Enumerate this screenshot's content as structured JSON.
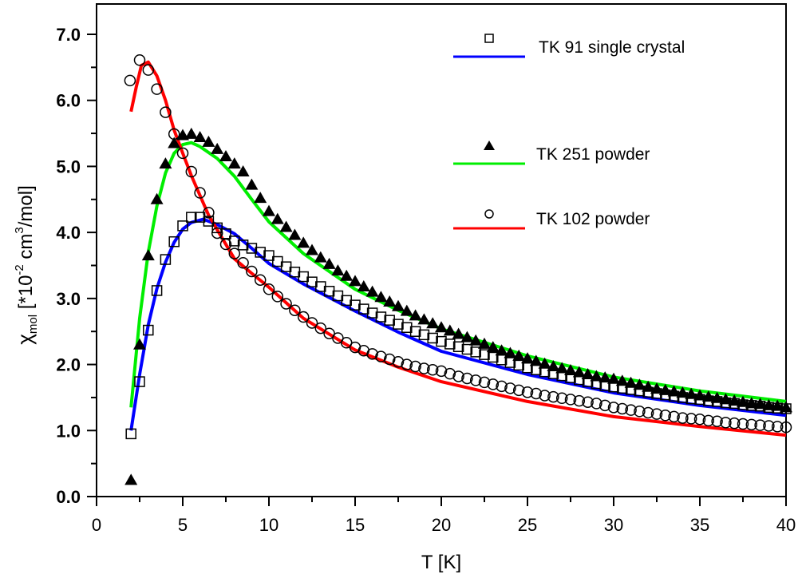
{
  "chart_data": {
    "type": "scatter",
    "title": "",
    "xlabel": "T [K]",
    "ylabel": {
      "symbol": "χ",
      "subscript": "mol",
      "text_a": " [*10",
      "sup_a": "-2",
      "text_b": " cm",
      "sup_b": "3",
      "text_c": "/mol]"
    },
    "xlim": [
      0,
      40
    ],
    "ylim": [
      0,
      7.5
    ],
    "xticks": [
      0,
      5,
      10,
      15,
      20,
      25,
      30,
      35,
      40
    ],
    "xtick_labels": [
      "0",
      "5",
      "10",
      "15",
      "20",
      "25",
      "30",
      "35",
      "40"
    ],
    "yticks": [
      0,
      1,
      2,
      3,
      4,
      5,
      6,
      7
    ],
    "ytick_labels": [
      "0.0",
      "1.0",
      "2.0",
      "3.0",
      "4.0",
      "5.0",
      "6.0",
      "7.0"
    ],
    "grid": false,
    "legend_placement": "top-right",
    "series": [
      {
        "name": "TK 91 single crystal",
        "marker": "open-square",
        "line_color": "#0000ff",
        "points": {
          "x": [
            2.0,
            2.5,
            3.0,
            3.5,
            4.0,
            4.5,
            5.0,
            5.5,
            6.0,
            6.5,
            7.0,
            7.5,
            8.0,
            8.5,
            9.0,
            9.5,
            10.0,
            10.5,
            11.0,
            11.5,
            12.0,
            12.5,
            13.0,
            13.5,
            14.0,
            14.5,
            15.0,
            15.5,
            16.0,
            16.5,
            17.0,
            17.5,
            18.0,
            18.5,
            19.0,
            19.5,
            20.0,
            20.5,
            21.0,
            21.5,
            22.0,
            22.5,
            23.0,
            23.5,
            24.0,
            24.5,
            25.0,
            25.5,
            26.0,
            26.5,
            27.0,
            27.5,
            28.0,
            28.5,
            29.0,
            29.5,
            30.0,
            30.5,
            31.0,
            31.5,
            32.0,
            32.5,
            33.0,
            33.5,
            34.0,
            34.5,
            35.0,
            35.5,
            36.0,
            36.5,
            37.0,
            37.5,
            38.0,
            38.5,
            39.0,
            39.5,
            40.0
          ],
          "y": [
            0.95,
            1.74,
            2.52,
            3.12,
            3.59,
            3.86,
            4.1,
            4.23,
            4.23,
            4.17,
            4.07,
            3.98,
            3.87,
            3.81,
            3.76,
            3.7,
            3.65,
            3.56,
            3.48,
            3.4,
            3.33,
            3.25,
            3.18,
            3.11,
            3.04,
            2.97,
            2.9,
            2.84,
            2.78,
            2.72,
            2.67,
            2.61,
            2.56,
            2.5,
            2.45,
            2.4,
            2.35,
            2.31,
            2.27,
            2.23,
            2.19,
            2.15,
            2.11,
            2.07,
            2.03,
            1.99,
            1.95,
            1.92,
            1.89,
            1.86,
            1.83,
            1.8,
            1.77,
            1.74,
            1.71,
            1.68,
            1.66,
            1.64,
            1.62,
            1.6,
            1.58,
            1.56,
            1.54,
            1.52,
            1.5,
            1.48,
            1.47,
            1.45,
            1.44,
            1.42,
            1.41,
            1.39,
            1.38,
            1.37,
            1.35,
            1.34,
            1.33
          ]
        },
        "fit": {
          "x": [
            2,
            2.5,
            3,
            3.5,
            4,
            4.5,
            5,
            5.5,
            6.2,
            7,
            8,
            9,
            10,
            12,
            15,
            17.5,
            20,
            25,
            30,
            35,
            40
          ],
          "y": [
            1.0,
            1.85,
            2.6,
            3.15,
            3.55,
            3.85,
            4.05,
            4.15,
            4.2,
            4.12,
            3.98,
            3.76,
            3.53,
            3.22,
            2.81,
            2.49,
            2.2,
            1.85,
            1.57,
            1.38,
            1.23
          ]
        }
      },
      {
        "name": "TK 251 powder",
        "marker": "filled-triangle",
        "line_color": "#00ee00",
        "points": {
          "x": [
            2.0,
            2.5,
            3.0,
            3.5,
            4.0,
            4.5,
            5.0,
            5.5,
            6.0,
            6.5,
            7.0,
            7.5,
            8.0,
            8.5,
            9.0,
            9.5,
            10.0,
            10.5,
            11.0,
            11.5,
            12.0,
            12.5,
            13.0,
            13.5,
            14.0,
            14.5,
            15.0,
            15.5,
            16.0,
            16.5,
            17.0,
            17.5,
            18.0,
            18.5,
            19.0,
            19.5,
            20.0,
            20.5,
            21.0,
            21.5,
            22.0,
            22.5,
            23.0,
            23.5,
            24.0,
            24.5,
            25.0,
            25.5,
            26.0,
            26.5,
            27.0,
            27.5,
            28.0,
            28.5,
            29.0,
            29.5,
            30.0,
            30.5,
            31.0,
            31.5,
            32.0,
            32.5,
            33.0,
            33.5,
            34.0,
            34.5,
            35.0,
            35.5,
            36.0,
            36.5,
            37.0,
            37.5,
            38.0,
            38.5,
            39.0,
            39.5,
            40.0
          ],
          "y": [
            0.25,
            2.3,
            3.65,
            4.5,
            5.04,
            5.35,
            5.47,
            5.49,
            5.44,
            5.37,
            5.26,
            5.15,
            5.04,
            4.92,
            4.72,
            4.52,
            4.32,
            4.2,
            4.08,
            3.96,
            3.84,
            3.73,
            3.62,
            3.52,
            3.42,
            3.34,
            3.26,
            3.18,
            3.1,
            3.02,
            2.95,
            2.88,
            2.81,
            2.74,
            2.68,
            2.62,
            2.56,
            2.51,
            2.46,
            2.41,
            2.36,
            2.31,
            2.26,
            2.21,
            2.17,
            2.13,
            2.09,
            2.05,
            2.01,
            1.97,
            1.94,
            1.91,
            1.88,
            1.85,
            1.82,
            1.8,
            1.78,
            1.75,
            1.72,
            1.69,
            1.66,
            1.63,
            1.61,
            1.59,
            1.57,
            1.55,
            1.53,
            1.51,
            1.49,
            1.47,
            1.45,
            1.43,
            1.41,
            1.4,
            1.38,
            1.37,
            1.35
          ]
        },
        "fit": {
          "x": [
            2,
            2.5,
            3,
            3.5,
            4,
            4.5,
            5,
            5.5,
            6,
            7,
            8,
            9,
            10,
            12,
            15,
            17.5,
            20,
            25,
            30,
            35,
            40
          ],
          "y": [
            1.35,
            2.7,
            3.7,
            4.4,
            4.9,
            5.2,
            5.33,
            5.36,
            5.3,
            5.12,
            4.85,
            4.5,
            4.16,
            3.68,
            3.14,
            2.82,
            2.54,
            2.13,
            1.81,
            1.6,
            1.44
          ]
        }
      },
      {
        "name": "TK 102 powder",
        "marker": "open-circle",
        "line_color": "#ff0000",
        "points": {
          "x": [
            1.94,
            2.5,
            3.0,
            3.5,
            4.0,
            4.5,
            5.0,
            5.5,
            6.0,
            6.5,
            7.0,
            7.5,
            8.0,
            8.5,
            9.0,
            9.5,
            10.0,
            10.5,
            11.0,
            11.5,
            12.0,
            12.5,
            13.0,
            13.5,
            14.0,
            14.5,
            15.0,
            15.5,
            16.0,
            16.5,
            17.0,
            17.5,
            18.0,
            18.5,
            19.0,
            19.5,
            20.0,
            20.5,
            21.0,
            21.5,
            22.0,
            22.5,
            23.0,
            23.5,
            24.0,
            24.5,
            25.0,
            25.5,
            26.0,
            26.5,
            27.0,
            27.5,
            28.0,
            28.5,
            29.0,
            29.5,
            30.0,
            30.5,
            31.0,
            31.5,
            32.0,
            32.5,
            33.0,
            33.5,
            34.0,
            34.5,
            35.0,
            35.5,
            36.0,
            36.5,
            37.0,
            37.5,
            38.0,
            38.5,
            39.0,
            39.5,
            40.0
          ],
          "y": [
            6.3,
            6.61,
            6.46,
            6.17,
            5.82,
            5.49,
            5.2,
            4.92,
            4.6,
            4.3,
            3.99,
            3.82,
            3.68,
            3.54,
            3.41,
            3.28,
            3.14,
            3.03,
            2.92,
            2.82,
            2.72,
            2.63,
            2.55,
            2.47,
            2.4,
            2.33,
            2.26,
            2.21,
            2.16,
            2.12,
            2.08,
            2.04,
            2.0,
            1.97,
            1.94,
            1.92,
            1.9,
            1.86,
            1.82,
            1.79,
            1.76,
            1.73,
            1.7,
            1.67,
            1.64,
            1.61,
            1.58,
            1.56,
            1.53,
            1.51,
            1.49,
            1.47,
            1.45,
            1.43,
            1.41,
            1.38,
            1.35,
            1.33,
            1.31,
            1.29,
            1.27,
            1.25,
            1.23,
            1.21,
            1.19,
            1.18,
            1.17,
            1.15,
            1.14,
            1.12,
            1.11,
            1.1,
            1.09,
            1.08,
            1.07,
            1.06,
            1.05
          ]
        },
        "fit": {
          "x": [
            2,
            2.3,
            2.6,
            3,
            3.5,
            4,
            4.5,
            5,
            5.5,
            6.5,
            8,
            9,
            10,
            12,
            15,
            17.5,
            20,
            25,
            30,
            35,
            40
          ],
          "y": [
            5.83,
            6.2,
            6.53,
            6.58,
            6.37,
            6.0,
            5.55,
            5.2,
            4.86,
            4.26,
            3.6,
            3.38,
            3.17,
            2.7,
            2.22,
            1.96,
            1.74,
            1.44,
            1.21,
            1.06,
            0.93
          ]
        }
      }
    ]
  }
}
